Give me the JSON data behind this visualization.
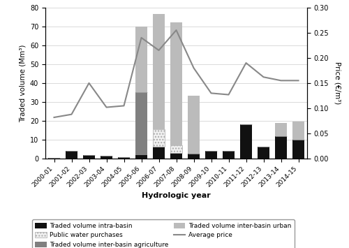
{
  "years": [
    "2000-01",
    "2001-02",
    "2002-03",
    "2003-04",
    "2004-05",
    "2005-06",
    "2006-07",
    "2007-08",
    "2008-09",
    "2009-10",
    "2010-11",
    "2011-12",
    "2012-13",
    "2013-14",
    "2014-15"
  ],
  "intra_basin": [
    0.5,
    4.0,
    2.0,
    1.5,
    0.8,
    2.0,
    6.5,
    3.0,
    2.5,
    4.0,
    4.0,
    18.0,
    6.5,
    12.0,
    10.0
  ],
  "inter_basin_agri": [
    0.0,
    0.0,
    0.0,
    0.0,
    0.0,
    33.0,
    0.0,
    0.0,
    0.0,
    0.0,
    0.0,
    0.0,
    0.0,
    0.0,
    0.0
  ],
  "public_water": [
    0.0,
    0.0,
    0.0,
    0.0,
    0.0,
    0.0,
    9.0,
    4.0,
    0.0,
    0.0,
    0.0,
    0.0,
    0.0,
    0.0,
    0.0
  ],
  "inter_basin_urban": [
    0.0,
    0.0,
    0.0,
    0.0,
    0.0,
    35.0,
    61.0,
    65.0,
    31.0,
    0.0,
    0.0,
    0.0,
    0.0,
    7.0,
    9.5
  ],
  "avg_price": [
    0.082,
    0.088,
    0.15,
    0.102,
    0.105,
    0.24,
    0.215,
    0.255,
    0.18,
    0.13,
    0.127,
    0.19,
    0.162,
    0.155,
    0.155
  ],
  "ylim_left": [
    0,
    80
  ],
  "ylim_right": [
    0.0,
    0.3
  ],
  "yticks_left": [
    0,
    10,
    20,
    30,
    40,
    50,
    60,
    70,
    80
  ],
  "yticks_right": [
    0.0,
    0.05,
    0.1,
    0.15,
    0.2,
    0.25,
    0.3
  ],
  "ylabel_left": "Traded volume (Mm³)",
  "ylabel_right": "Price (€/m³)",
  "xlabel": "Hydrologic year",
  "color_intra": "#111111",
  "color_agri": "#808080",
  "color_public": "#f0f0f0",
  "color_public_edge": "#aaaaaa",
  "color_urban": "#bbbbbb",
  "color_price": "#888888",
  "hatch_public": "....",
  "bar_width": 0.65,
  "figsize": [
    5.0,
    3.55
  ],
  "dpi": 100,
  "legend_labels": [
    "Traded volume intra-basin",
    "Public water purchases",
    "Traded volume inter-basin agriculture",
    "Traded volume inter-basin urban",
    "Average price"
  ]
}
